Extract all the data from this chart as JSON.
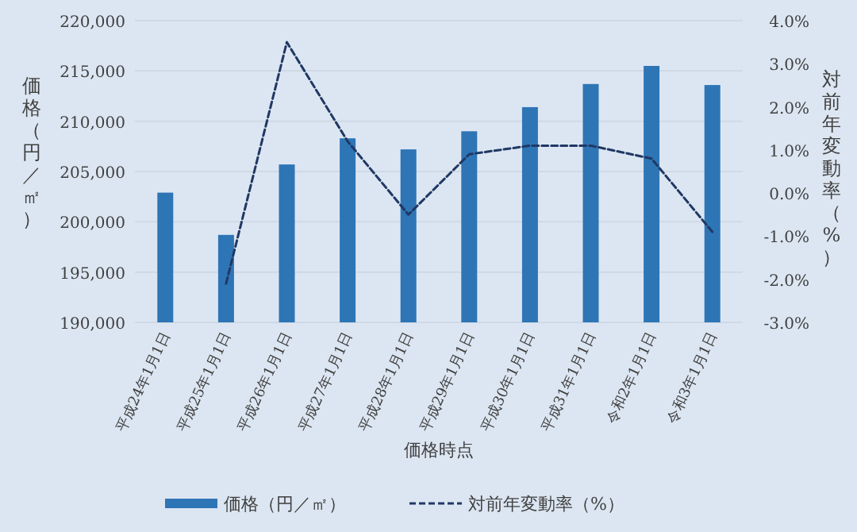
{
  "chart_data": {
    "type": "bar",
    "xlabel": "価格時点",
    "ylabel": "価格（円／㎡）",
    "y2label": "対前年変動率（%）",
    "categories": [
      "平成24年1月1日",
      "平成25年1月1日",
      "平成26年1月1日",
      "平成27年1月1日",
      "平成28年1月1日",
      "平成29年1月1日",
      "平成30年1月1日",
      "平成31年1月1日",
      "令和2年1月1日",
      "令和3年1月1日"
    ],
    "series": [
      {
        "name": "価格（円／㎡）",
        "color": "#2e75b6",
        "values": [
          202900,
          198700,
          205700,
          208300,
          207200,
          209000,
          211400,
          213700,
          215500,
          213600
        ]
      },
      {
        "name": "対前年変動率（%）",
        "type": "line",
        "axis": "y2",
        "color": "#203864",
        "line_style": "dashed",
        "values": [
          null,
          -2.1,
          3.5,
          1.2,
          -0.5,
          0.9,
          1.1,
          1.1,
          0.8,
          -0.9
        ]
      }
    ],
    "ylim": [
      190000,
      220000
    ],
    "yticks": [
      {
        "value": 190000,
        "label": "190,000"
      },
      {
        "value": 195000,
        "label": "195,000"
      },
      {
        "value": 200000,
        "label": "200,000"
      },
      {
        "value": 205000,
        "label": "205,000"
      },
      {
        "value": 210000,
        "label": "210,000"
      },
      {
        "value": 215000,
        "label": "215,000"
      },
      {
        "value": 220000,
        "label": "220,000"
      }
    ],
    "y2lim": [
      -3,
      4
    ],
    "y2ticks": [
      {
        "value": -3,
        "label": "-3.0%"
      },
      {
        "value": -2,
        "label": "-2.0%"
      },
      {
        "value": -1,
        "label": "-1.0%"
      },
      {
        "value": 0,
        "label": "0.0%"
      },
      {
        "value": 1,
        "label": "1.0%"
      },
      {
        "value": 2,
        "label": "2.0%"
      },
      {
        "value": 3,
        "label": "3.0%"
      },
      {
        "value": 4,
        "label": "4.0%"
      }
    ],
    "grid": "y",
    "legend": "bottom"
  }
}
